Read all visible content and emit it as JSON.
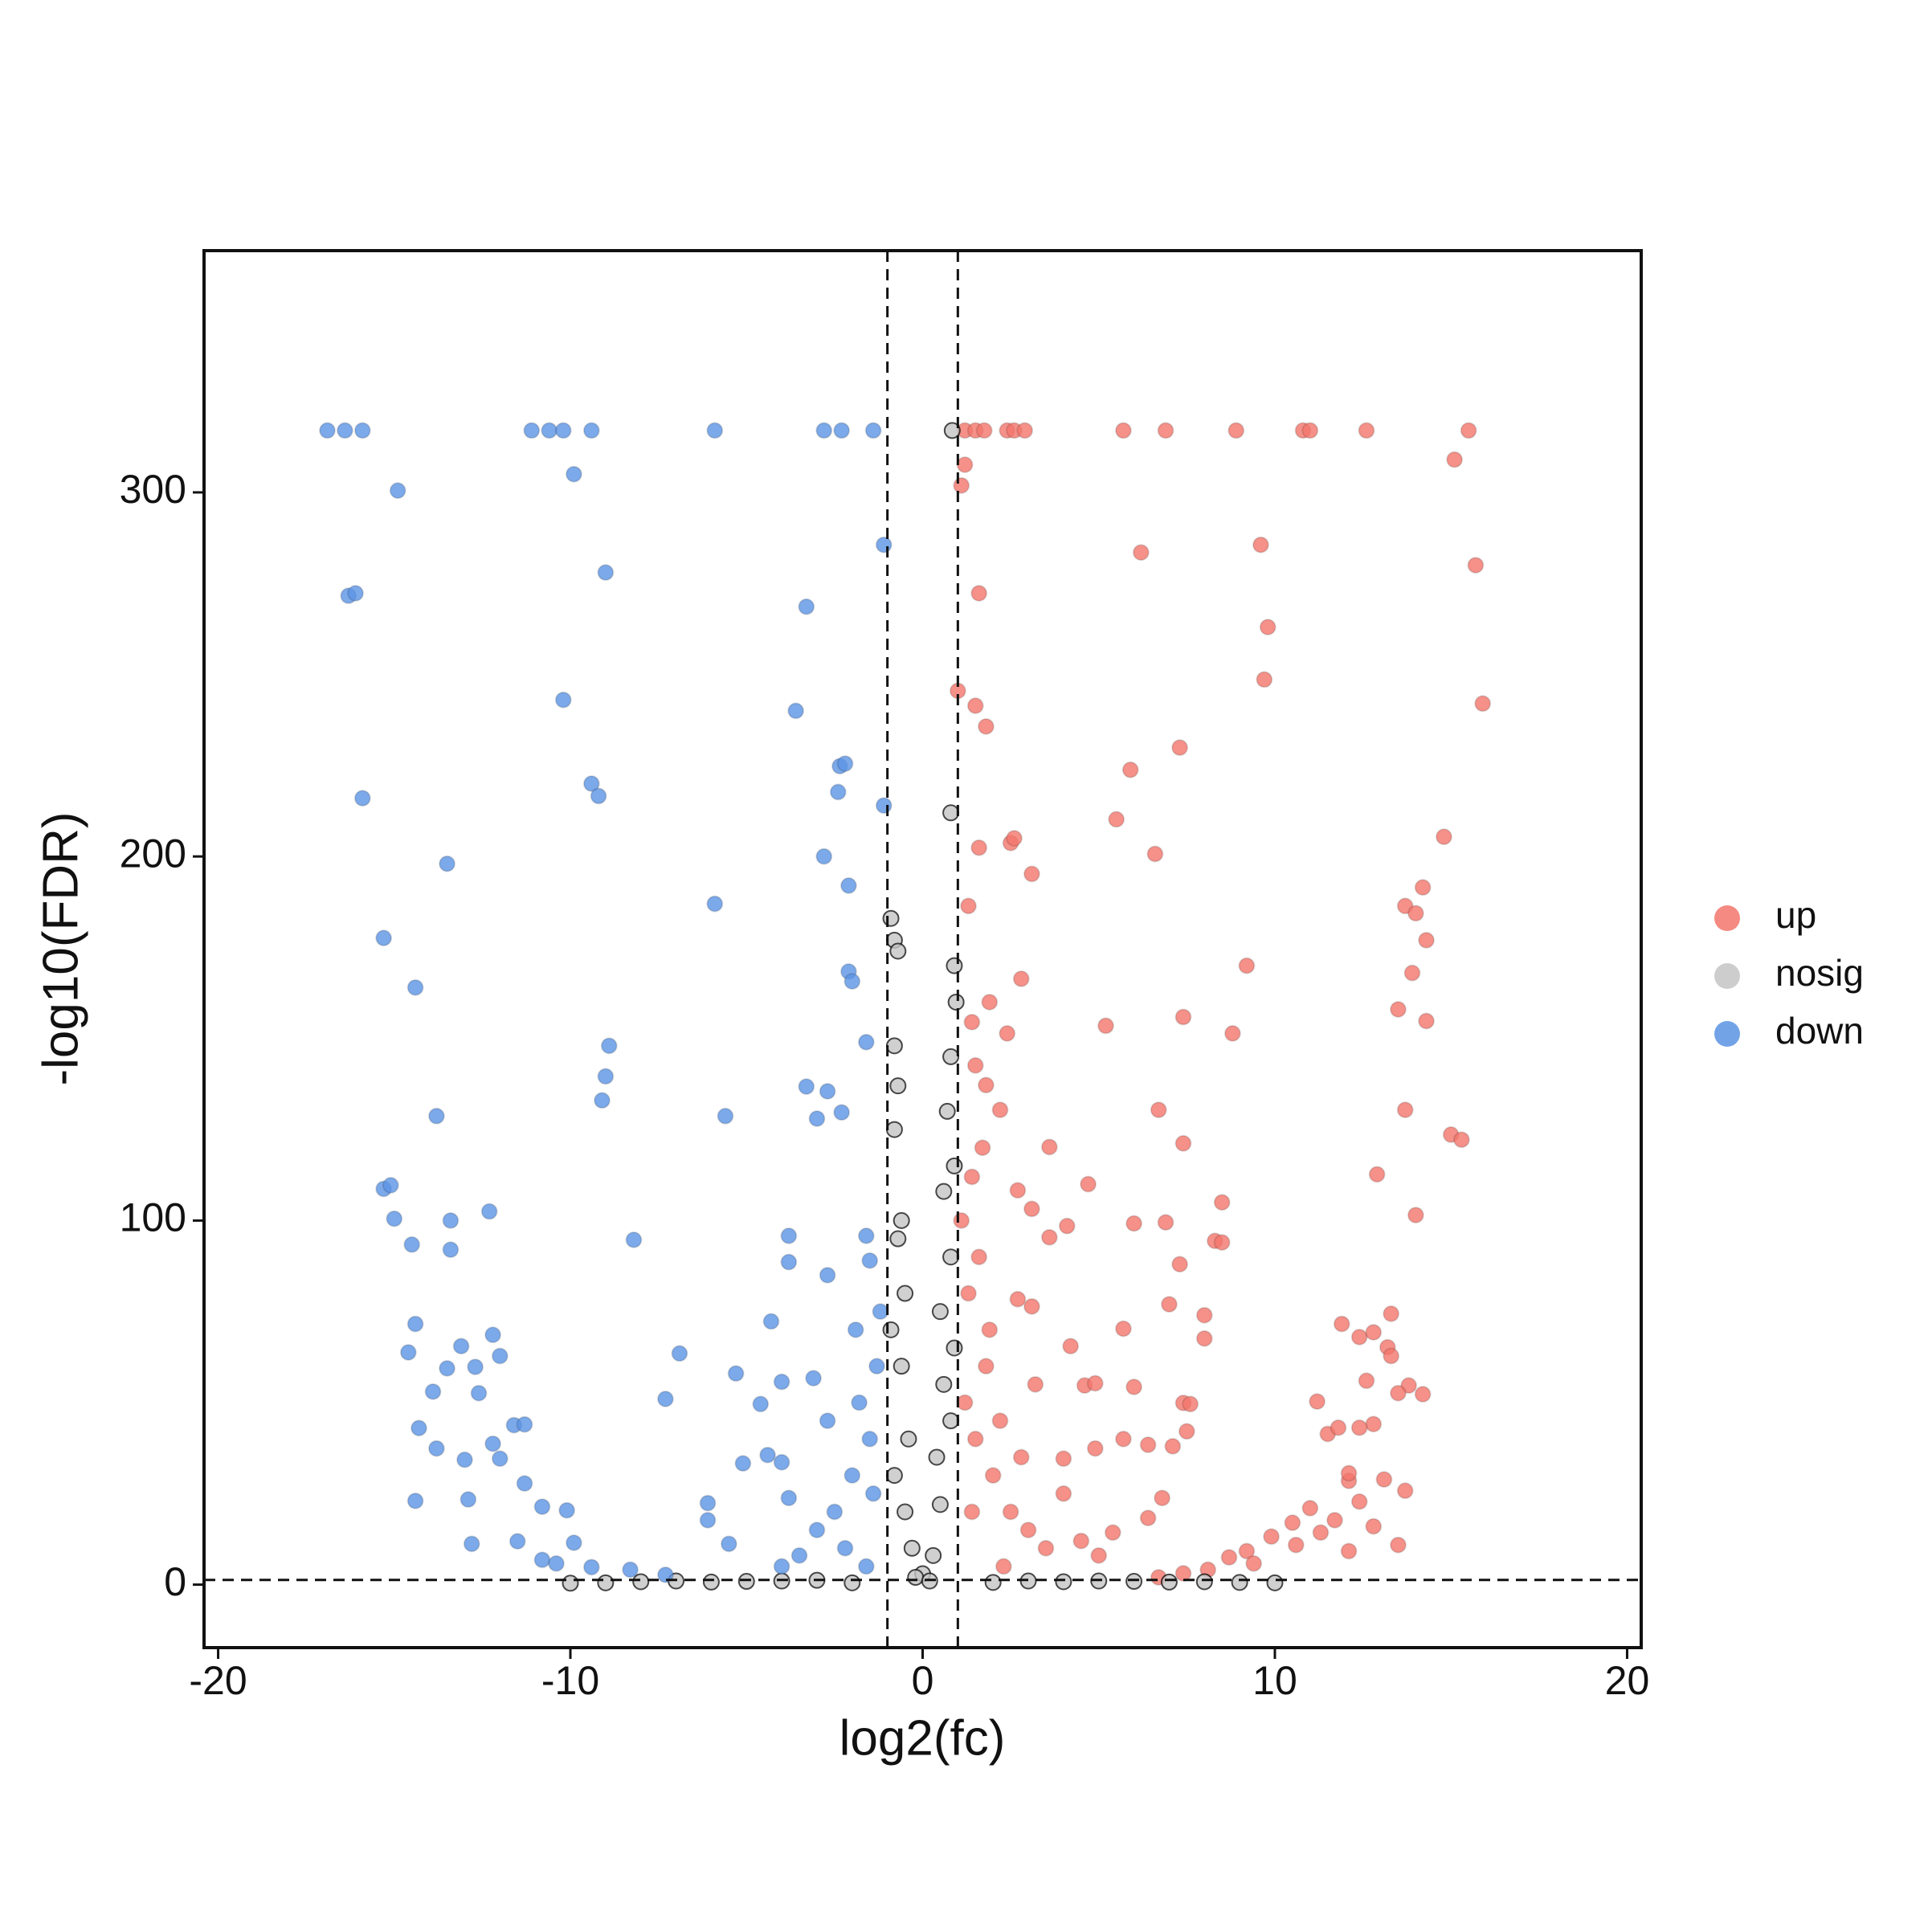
{
  "chart_data": {
    "type": "scatter",
    "xlabel": "log2(fc)",
    "ylabel": "-log10(FDR)",
    "xlim": [
      -20.4,
      20.4
    ],
    "ylim": [
      -17.3,
      366.4
    ],
    "xticks": [
      -20,
      -10,
      0,
      10,
      20
    ],
    "yticks": [
      0,
      100,
      200,
      300
    ],
    "vlines": [
      -1,
      1
    ],
    "hline": 1.3,
    "legend": "right",
    "series": [
      {
        "name": "up",
        "color": "#f2766b",
        "x": [
          1.2,
          1.5,
          1.75,
          2.4,
          2.6,
          2.9,
          5.7,
          6.9,
          8.9,
          10.8,
          11.0,
          12.6,
          15.5,
          1.2,
          1.1,
          15.1,
          6.2,
          9.6,
          15.7,
          1.6,
          9.8,
          1.0,
          1.5,
          1.8,
          9.7,
          15.9,
          7.3,
          5.9,
          5.5,
          1.6,
          2.5,
          2.6,
          6.6,
          3.1,
          14.8,
          14.2,
          13.7,
          14.0,
          14.3,
          1.3,
          9.2,
          13.9,
          2.8,
          1.9,
          7.4,
          5.2,
          2.4,
          8.8,
          13.5,
          14.3,
          1.4,
          1.5,
          1.8,
          6.7,
          13.7,
          2.2,
          15.0,
          15.3,
          3.6,
          7.4,
          12.9,
          1.4,
          2.7,
          4.7,
          3.1,
          8.5,
          14.0,
          6.0,
          6.9,
          4.1,
          3.6,
          8.3,
          8.5,
          7.3,
          2.7,
          3.1,
          7.0,
          8.0,
          8.0,
          11.9,
          13.3,
          12.4,
          12.8,
          5.7,
          4.2,
          13.2,
          13.3,
          4.6,
          4.9,
          6.0,
          7.4,
          7.6,
          12.6,
          13.8,
          13.5,
          14.2,
          11.2,
          12.8,
          12.4,
          11.5,
          11.8,
          5.7,
          6.4,
          7.1,
          7.5,
          4.9,
          4.0,
          12.1,
          13.1,
          13.7,
          12.1,
          6.8,
          6.4,
          5.4,
          13.5,
          11.0,
          10.5,
          9.9,
          9.2,
          8.7,
          10.6,
          11.3,
          11.7,
          12.4,
          12.8,
          12.1,
          9.4,
          8.1,
          7.4,
          6.7,
          1.2,
          1.5,
          2.0,
          2.5,
          3.0,
          1.8,
          1.3,
          2.2,
          3.5,
          1.6,
          4.0,
          2.8,
          1.4,
          2.3,
          3.2,
          1.9,
          4.5,
          5.0,
          1.1,
          1.7
        ],
        "y": [
          317,
          317,
          317,
          317,
          317,
          317,
          317,
          317,
          317,
          317,
          317,
          317,
          317,
          307.6,
          301.9,
          309,
          283.5,
          285.6,
          280,
          272.3,
          263,
          245.5,
          241.4,
          235.7,
          248.6,
          242,
          229.9,
          223.8,
          210.2,
          202.4,
          203.7,
          205,
          200.7,
          195.2,
          205.4,
          191.5,
          186.4,
          184.4,
          177,
          186.4,
          170,
          168,
          166.4,
          160,
          155.9,
          153.5,
          151.4,
          151.4,
          158,
          154.8,
          154.5,
          142.6,
          137.2,
          130.4,
          130.4,
          130.4,
          123.6,
          122.2,
          120.2,
          121.2,
          112.7,
          112,
          108.3,
          110,
          103.2,
          105,
          101.5,
          99.2,
          99.5,
          98.5,
          95.4,
          94.4,
          94,
          88,
          78.4,
          76.4,
          77,
          74,
          67.6,
          71.6,
          74.4,
          68,
          69.3,
          70.3,
          65.5,
          65.2,
          62.8,
          54.7,
          55.3,
          54.3,
          49.9,
          49.6,
          56,
          54.7,
          52.6,
          52.3,
          50.3,
          44.1,
          43.1,
          41.4,
          43.1,
          40,
          38.4,
          38,
          42.1,
          37.4,
          34.6,
          28.5,
          28.9,
          25.8,
          30.6,
          23.8,
          18.3,
          14.3,
          10.9,
          21,
          17,
          13.2,
          9.2,
          7.5,
          10.9,
          14.3,
          17.7,
          22.8,
          16,
          9.2,
          5.8,
          4.1,
          3.1,
          2,
          50,
          40,
          30,
          20,
          15,
          60,
          80,
          45,
          10,
          90,
          25,
          35,
          20,
          5,
          55,
          70,
          12,
          8,
          100,
          120
        ]
      },
      {
        "name": "nosig",
        "color": "#c4c4c4",
        "x": [
          -0.9,
          -0.8,
          -0.7,
          0.8,
          0.9,
          0.95,
          0.8,
          -0.8,
          -0.7,
          -0.8,
          0.7,
          0.9,
          -0.6,
          -0.7,
          0.6,
          0.8,
          -0.5,
          0.5,
          -0.6,
          0.6,
          -0.4,
          0.4,
          -0.5,
          0.5,
          -0.3,
          0.3,
          0,
          -0.2,
          0.2,
          -0.8,
          0.8,
          -0.9,
          0.9,
          0.84,
          -9,
          -8,
          -7,
          -6,
          -5,
          -4,
          -3,
          -2,
          2,
          3,
          4,
          5,
          6,
          7,
          8,
          9,
          10,
          -10
        ],
        "y": [
          183,
          177,
          174,
          212,
          170,
          160,
          145,
          148,
          137,
          125,
          130,
          115,
          100,
          95,
          108,
          90,
          80,
          75,
          60,
          55,
          40,
          35,
          20,
          22,
          10,
          8,
          3,
          2,
          1,
          30,
          45,
          70,
          65,
          317,
          0.5,
          0.8,
          1,
          0.7,
          0.9,
          1,
          1.2,
          0.5,
          0.6,
          1,
          0.8,
          1,
          0.9,
          0.7,
          0.8,
          0.6,
          0.5,
          0.4
        ]
      },
      {
        "name": "down",
        "color": "#5b93e3",
        "x": [
          -16.9,
          -16.4,
          -15.9,
          -11.1,
          -10.6,
          -10.2,
          -9.4,
          -5.9,
          -2.8,
          -2.3,
          -1.4,
          -14.9,
          -9.9,
          -16.3,
          -16.1,
          -9.0,
          -3.3,
          -10.2,
          -3.6,
          -15.9,
          -9.4,
          -9.2,
          -2.35,
          -2.2,
          -2.4,
          -1.1,
          -1.1,
          -13.5,
          -2.8,
          -2.1,
          -5.9,
          -15.3,
          -14.4,
          -2.1,
          -2.0,
          -8.9,
          -9.0,
          -9.1,
          -13.8,
          -5.6,
          -3.3,
          -2.7,
          -3.0,
          -2.3,
          -1.6,
          -15.3,
          -15.1,
          -15.0,
          -12.3,
          -13.4,
          -13.4,
          -14.5,
          -8.2,
          -3.8,
          -3.8,
          -2.7,
          -1.6,
          -1.5,
          -14.4,
          -14.6,
          -13.1,
          -13.5,
          -12.7,
          -12.2,
          -12.0,
          -6.9,
          -4.3,
          -5.3,
          -13.9,
          -12.6,
          -7.3,
          -4.6,
          -4.0,
          -3.1,
          -14.3,
          -13.8,
          -11.6,
          -11.3,
          -12.2,
          -12.0,
          -13.0,
          -4.4,
          -4.0,
          -5.1,
          -14.4,
          -12.9,
          -11.3,
          -10.8,
          -10.1,
          -6.1,
          -6.1,
          -5.5,
          -3.8,
          -12.8,
          -11.5,
          -10.8,
          -10.4,
          -9.9,
          -9.4,
          -8.3,
          -7.3,
          -1.5,
          -2.0,
          -2.5,
          -1.3,
          -1.8,
          -3.0,
          -2.2,
          -1.6,
          -3.5,
          -2.7,
          -1.4,
          -4.0,
          -1.2,
          -1.9
        ],
        "y": [
          317,
          317,
          317,
          317,
          317,
          317,
          317,
          317,
          317,
          317,
          317,
          300.5,
          305,
          271.6,
          272.3,
          278,
          268.6,
          243,
          240,
          216,
          220,
          216.6,
          224.8,
          225.5,
          217.7,
          285.6,
          214,
          198,
          200,
          192,
          187,
          177.6,
          164,
          168.4,
          165.7,
          148,
          139.6,
          133,
          128.7,
          128.7,
          136.8,
          135.5,
          128,
          129.7,
          149,
          108.7,
          109.7,
          100.5,
          102.5,
          100,
          92,
          93.4,
          94.7,
          95.8,
          88.6,
          85,
          95.8,
          89,
          71.6,
          63.8,
          65.5,
          59.4,
          59.8,
          68.6,
          62.8,
          63.5,
          72.3,
          58,
          53,
          52.6,
          51,
          49.6,
          55.7,
          56.7,
          43,
          37.4,
          43.8,
          44,
          38.7,
          34.6,
          34.3,
          35.6,
          33.6,
          33.3,
          23,
          23.4,
          27.8,
          21.4,
          20.4,
          22.4,
          17.7,
          11.2,
          23.8,
          11.2,
          11.9,
          6.8,
          5.8,
          11.5,
          4.8,
          4.1,
          2.7,
          40,
          30,
          20,
          60,
          50,
          15,
          10,
          5,
          8,
          45,
          25,
          5,
          75,
          70
        ]
      }
    ]
  }
}
